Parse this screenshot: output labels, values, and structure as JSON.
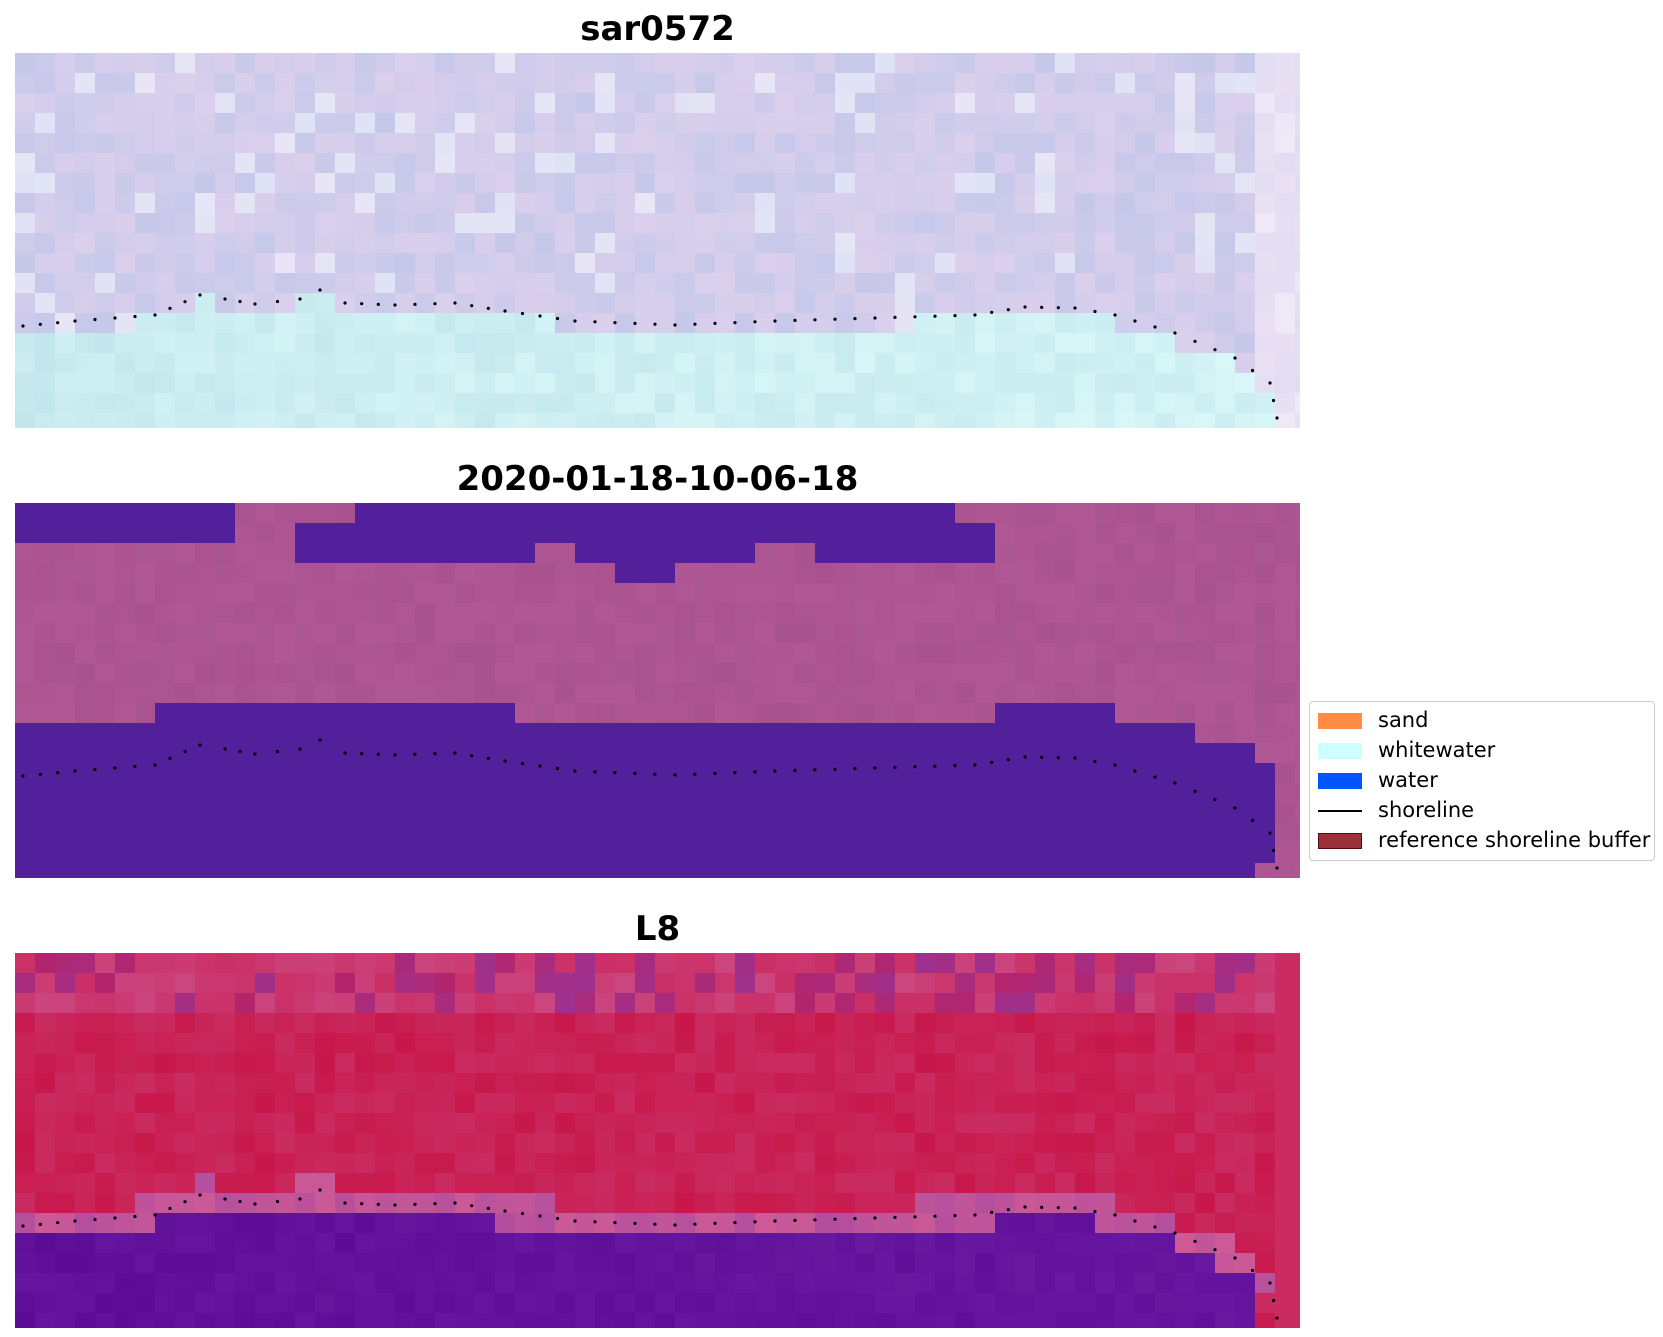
{
  "panels": [
    {
      "title": "sar0572",
      "style": "rgb-image"
    },
    {
      "title": "2020-01-18-10-06-18",
      "style": "classified-image"
    },
    {
      "title": "L8",
      "style": "index-image"
    }
  ],
  "legend": {
    "items": [
      {
        "label": "sand",
        "kind": "patch",
        "color": "#ff8c42"
      },
      {
        "label": "whitewater",
        "kind": "patch",
        "color": "#ccffff"
      },
      {
        "label": "water",
        "kind": "patch",
        "color": "#0055ff"
      },
      {
        "label": "shoreline",
        "kind": "line",
        "color": "#000000"
      },
      {
        "label": "reference shoreline buffer",
        "kind": "patch",
        "color": "#9b3036",
        "edge": "#5a0a10"
      }
    ]
  },
  "colors": {
    "rgb_water": "#c2e6ec",
    "rgb_land": "#c6c8ea",
    "class_water": "#52209a",
    "class_land": "#a8528f",
    "index_land": "#c8184b",
    "index_water": "#5c0b95",
    "shoreline_dots": "#000000"
  }
}
